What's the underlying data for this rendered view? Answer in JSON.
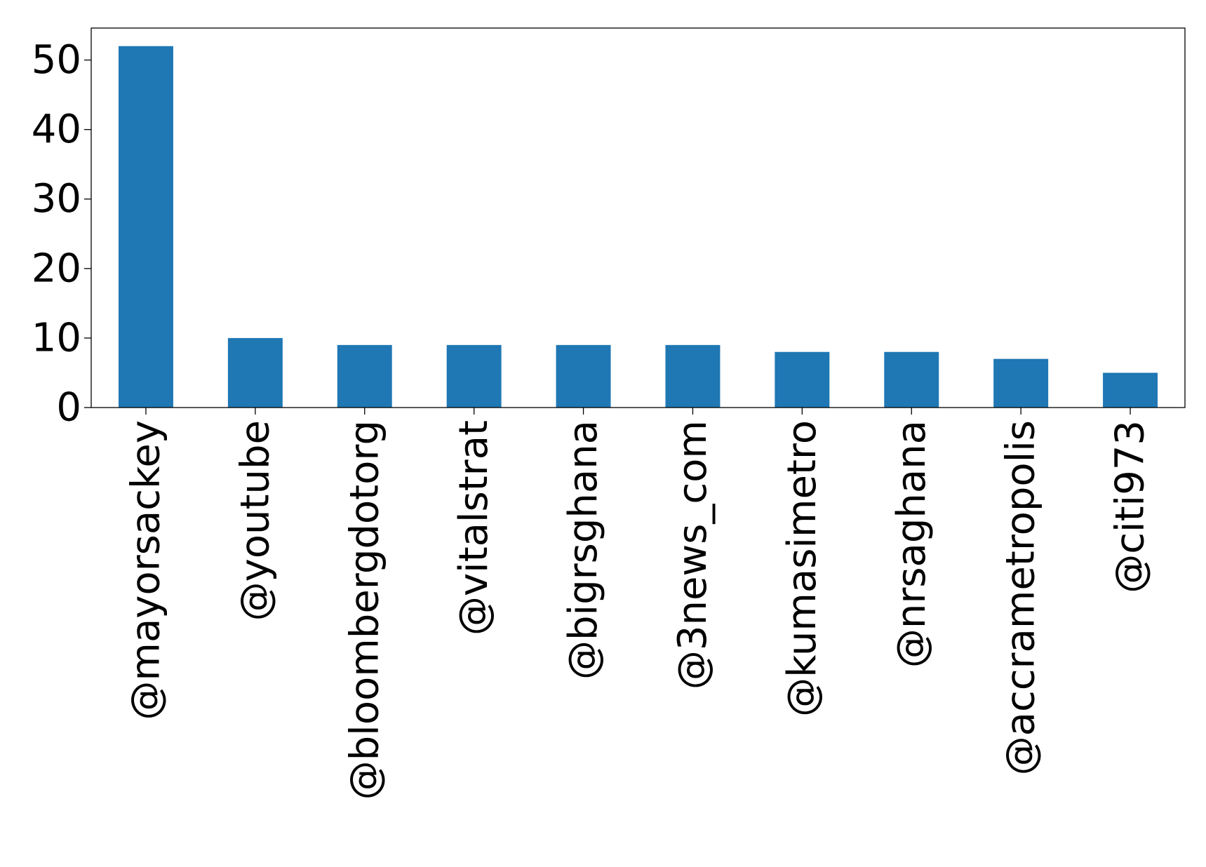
{
  "chart_data": {
    "type": "bar",
    "title": "",
    "xlabel": "",
    "ylabel": "",
    "categories": [
      "@mayorsackey",
      "@youtube",
      "@bloombergdotorg",
      "@vitalstrat",
      "@bigrsghana",
      "@3news_com",
      "@kumasimetro",
      "@nrsaghana",
      "@accrametropolis",
      "@citi973"
    ],
    "values": [
      52,
      10,
      9,
      9,
      9,
      9,
      8,
      8,
      7,
      5
    ],
    "ylim": [
      0,
      54.6
    ],
    "yticks": [
      0,
      10,
      20,
      30,
      40,
      50
    ],
    "bar_color": "#1f77b4",
    "grid": false,
    "legend": "none"
  }
}
